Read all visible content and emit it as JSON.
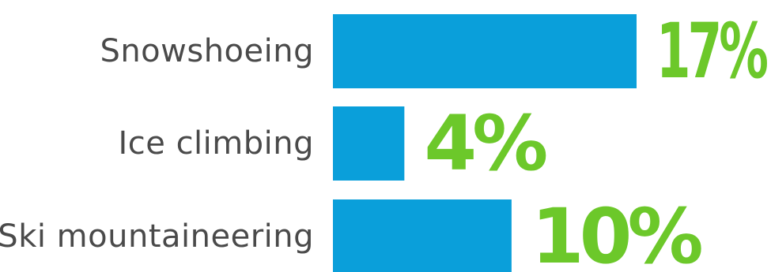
{
  "chart_data": {
    "type": "bar",
    "orientation": "horizontal",
    "categories": [
      "Snowshoeing",
      "Ice climbing",
      "Ski mountaineering"
    ],
    "values": [
      17,
      4,
      10
    ],
    "value_labels": [
      "17%",
      "4%",
      "10%"
    ],
    "title": "",
    "xlabel": "",
    "ylabel": "",
    "grid": false,
    "legend": "none"
  },
  "colors": {
    "bar": "#0a9fda",
    "value_label": "#6cc82a",
    "category_label": "#4a4a4a",
    "background": "#ffffff"
  }
}
